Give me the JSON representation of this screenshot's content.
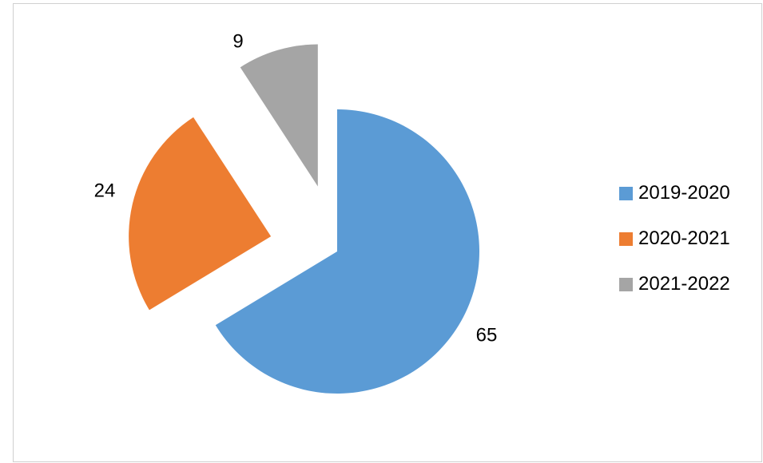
{
  "chart_data": {
    "type": "pie",
    "categories": [
      "2019-2020",
      "2020-2021",
      "2021-2022"
    ],
    "values": [
      65,
      24,
      9
    ],
    "data_labels": [
      "65",
      "24",
      "9"
    ],
    "colors": [
      "#5b9bd5",
      "#ed7d31",
      "#a5a5a5"
    ],
    "exploded": true,
    "start_angle": "12 o'clock, clockwise",
    "legend": "right",
    "title": ""
  }
}
